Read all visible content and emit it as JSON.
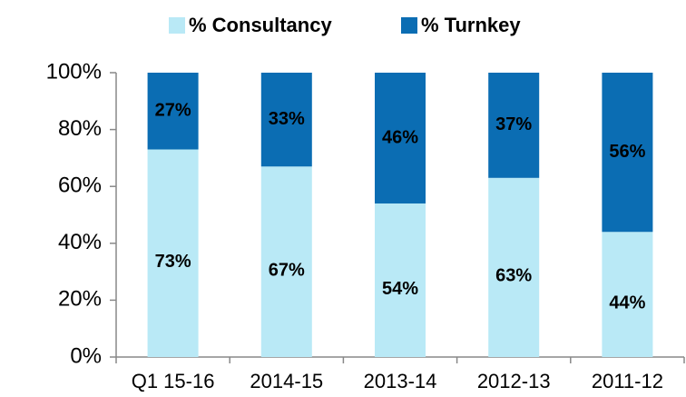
{
  "chart_data": {
    "type": "stacked_bar",
    "categories": [
      "Q1 15-16",
      "2014-15",
      "2013-14",
      "2012-13",
      "2011-12"
    ],
    "series": [
      {
        "name": "% Consultancy",
        "color": "#b9e9f6",
        "values": [
          73,
          67,
          54,
          63,
          44
        ],
        "value_labels": [
          "73%",
          "67%",
          "54%",
          "63%",
          "44%"
        ]
      },
      {
        "name": "% Turnkey",
        "color": "#0b6db3",
        "values": [
          27,
          33,
          46,
          37,
          56
        ],
        "value_labels": [
          "27%",
          "33%",
          "46%",
          "37%",
          "56%"
        ]
      }
    ],
    "ylim": [
      0,
      100
    ],
    "yticks": [
      {
        "value": 0,
        "label": "0%"
      },
      {
        "value": 20,
        "label": "20%"
      },
      {
        "value": 40,
        "label": "40%"
      },
      {
        "value": 60,
        "label": "60%"
      },
      {
        "value": 80,
        "label": "80%"
      },
      {
        "value": 100,
        "label": "100%"
      }
    ],
    "legend": "top"
  }
}
